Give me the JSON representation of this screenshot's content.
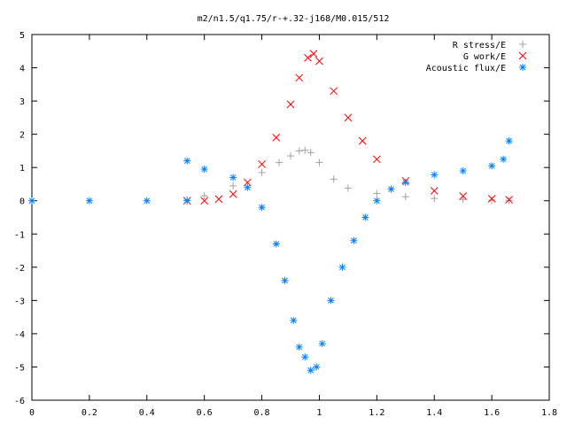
{
  "chart_data": {
    "type": "scatter",
    "title": "m2/n1.5/q1.75/r-+.32-j168/M0.015/512",
    "xlabel": "",
    "ylabel": "",
    "xlim": [
      0,
      1.8
    ],
    "ylim": [
      -6,
      5
    ],
    "x_ticks": [
      "0",
      "0.2",
      "0.4",
      "0.6",
      "0.8",
      "1",
      "1.2",
      "1.4",
      "1.6",
      "1.8"
    ],
    "y_ticks": [
      "5",
      "4",
      "3",
      "2",
      "1",
      "0",
      "-1",
      "-2",
      "-3",
      "-4",
      "-5",
      "-6"
    ],
    "legend_position": "top-right",
    "grid": false,
    "series": [
      {
        "name": "R stress/E",
        "marker": "+",
        "color": "#a0a0a0",
        "points": [
          [
            0.54,
            0.02
          ],
          [
            0.6,
            0.15
          ],
          [
            0.7,
            0.45
          ],
          [
            0.8,
            0.85
          ],
          [
            0.86,
            1.15
          ],
          [
            0.9,
            1.35
          ],
          [
            0.93,
            1.5
          ],
          [
            0.95,
            1.52
          ],
          [
            0.97,
            1.45
          ],
          [
            1.0,
            1.15
          ],
          [
            1.05,
            0.65
          ],
          [
            1.1,
            0.38
          ],
          [
            1.2,
            0.22
          ],
          [
            1.3,
            0.12
          ],
          [
            1.4,
            0.07
          ],
          [
            1.5,
            0.04
          ],
          [
            1.6,
            0.02
          ],
          [
            1.66,
            0.01
          ]
        ]
      },
      {
        "name": "G work/E",
        "marker": "x",
        "color": "#ff0000",
        "points": [
          [
            0.54,
            0.0
          ],
          [
            0.6,
            0.0
          ],
          [
            0.65,
            0.05
          ],
          [
            0.7,
            0.2
          ],
          [
            0.75,
            0.55
          ],
          [
            0.8,
            1.1
          ],
          [
            0.85,
            1.9
          ],
          [
            0.9,
            2.9
          ],
          [
            0.93,
            3.7
          ],
          [
            0.96,
            4.3
          ],
          [
            0.98,
            4.42
          ],
          [
            1.0,
            4.2
          ],
          [
            1.05,
            3.3
          ],
          [
            1.1,
            2.5
          ],
          [
            1.15,
            1.8
          ],
          [
            1.2,
            1.25
          ],
          [
            1.3,
            0.6
          ],
          [
            1.4,
            0.3
          ],
          [
            1.5,
            0.14
          ],
          [
            1.6,
            0.06
          ],
          [
            1.66,
            0.03
          ]
        ]
      },
      {
        "name": "Acoustic flux/E",
        "marker": "*",
        "color": "#0080ff",
        "points": [
          [
            0.0,
            0.0
          ],
          [
            0.2,
            0.0
          ],
          [
            0.4,
            0.0
          ],
          [
            0.54,
            0.0
          ],
          [
            0.54,
            1.2
          ],
          [
            0.6,
            0.95
          ],
          [
            0.7,
            0.7
          ],
          [
            0.75,
            0.4
          ],
          [
            0.8,
            -0.2
          ],
          [
            0.85,
            -1.3
          ],
          [
            0.88,
            -2.4
          ],
          [
            0.91,
            -3.6
          ],
          [
            0.93,
            -4.4
          ],
          [
            0.95,
            -4.7
          ],
          [
            0.97,
            -5.1
          ],
          [
            0.99,
            -5.0
          ],
          [
            1.01,
            -4.3
          ],
          [
            1.04,
            -3.0
          ],
          [
            1.08,
            -2.0
          ],
          [
            1.12,
            -1.2
          ],
          [
            1.16,
            -0.5
          ],
          [
            1.2,
            0.0
          ],
          [
            1.25,
            0.35
          ],
          [
            1.3,
            0.55
          ],
          [
            1.4,
            0.78
          ],
          [
            1.5,
            0.9
          ],
          [
            1.6,
            1.05
          ],
          [
            1.64,
            1.25
          ],
          [
            1.66,
            1.8
          ]
        ]
      }
    ]
  }
}
